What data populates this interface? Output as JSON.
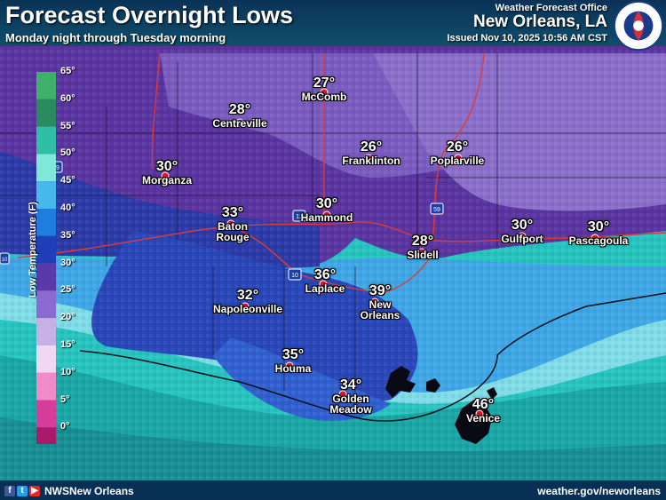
{
  "header": {
    "title": "Forecast Overnight Lows",
    "subtitle": "Monday night through Tuesday morning",
    "office_line": "Weather Forecast Office",
    "office_city": "New Orleans, LA",
    "issued": "Issued Nov 10, 2025 10:56 AM CST",
    "logo_text": "NATIONAL WEATHER SERVICE"
  },
  "legend": {
    "axis_label": "Low Temperature (F)",
    "ticks": [
      "65°",
      "60°",
      "55°",
      "50°",
      "45°",
      "40°",
      "35°",
      "30°",
      "25°",
      "20°",
      "15°",
      "10°",
      "5°",
      "0°"
    ],
    "colors": [
      "#3fb06a",
      "#2a8a60",
      "#2fbfa8",
      "#7fe8d8",
      "#46b8ea",
      "#1f7de0",
      "#1f3fb8",
      "#5a3aa8",
      "#8c6ad0",
      "#c6b0e6",
      "#f0d8f0",
      "#f08ac8",
      "#d83c9a",
      "#a81a6a"
    ]
  },
  "cities": [
    {
      "name": "McComb",
      "temp": "27°"
    },
    {
      "name": "Centreville",
      "temp": "28°"
    },
    {
      "name": "Franklinton",
      "temp": "26°"
    },
    {
      "name": "Poplarville",
      "temp": "26°"
    },
    {
      "name": "Morganza",
      "temp": "30°"
    },
    {
      "name": "Baton\nRouge",
      "temp": "33°"
    },
    {
      "name": "Hammond",
      "temp": "30°"
    },
    {
      "name": "Slidell",
      "temp": "28°"
    },
    {
      "name": "Gulfport",
      "temp": "30°"
    },
    {
      "name": "Pascagoula",
      "temp": "30°"
    },
    {
      "name": "Laplace",
      "temp": "36°"
    },
    {
      "name": "New\nOrleans",
      "temp": "39°"
    },
    {
      "name": "Napoleonville",
      "temp": "32°"
    },
    {
      "name": "Houma",
      "temp": "35°"
    },
    {
      "name": "Golden\nMeadow",
      "temp": "34°"
    },
    {
      "name": "Venice",
      "temp": "46°"
    }
  ],
  "highways": [
    "49",
    "12",
    "10",
    "59",
    "10"
  ],
  "footer": {
    "social_icons": [
      "facebook-icon",
      "twitter-icon",
      "youtube-icon"
    ],
    "handle": "NWSNew Orleans",
    "website": "weather.gov/neworleans"
  }
}
